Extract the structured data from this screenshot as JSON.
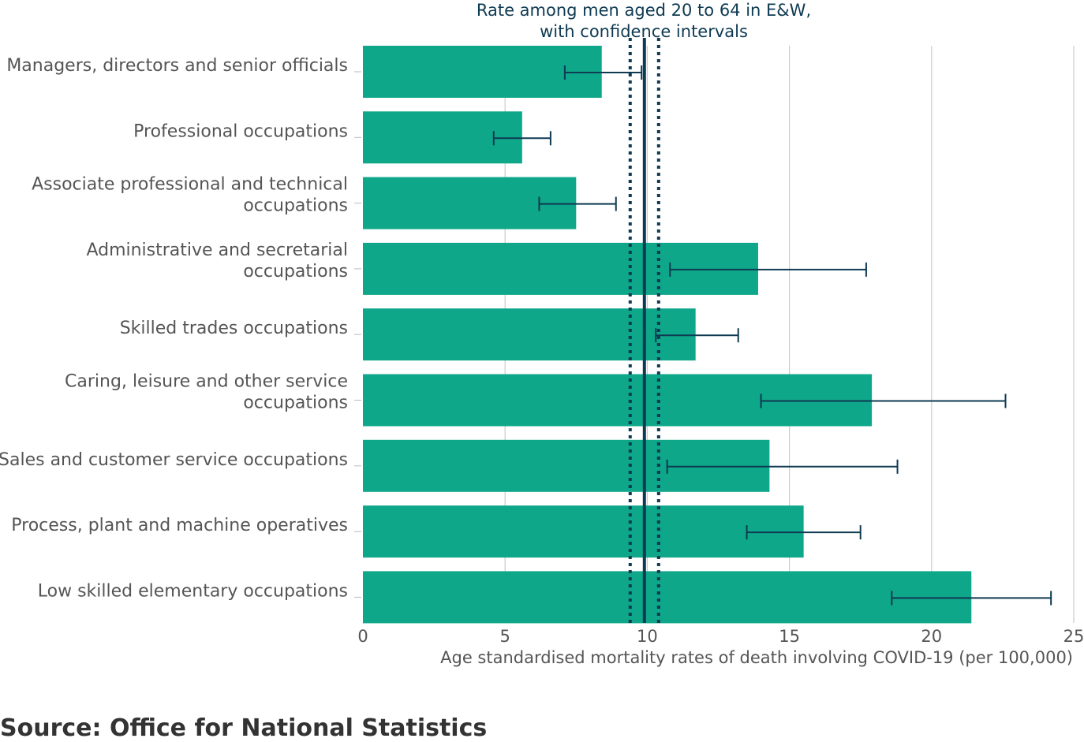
{
  "chart_data": {
    "type": "bar",
    "orientation": "horizontal",
    "categories": [
      [
        "Managers, directors and senior officials"
      ],
      [
        "Professional occupations"
      ],
      [
        "Associate professional and technical",
        "occupations"
      ],
      [
        "Administrative and secretarial",
        "occupations"
      ],
      [
        "Skilled trades occupations"
      ],
      [
        "Caring, leisure and other service",
        "occupations"
      ],
      [
        "Sales and customer service occupations"
      ],
      [
        "Process, plant and machine operatives"
      ],
      [
        "Low skilled elementary occupations"
      ]
    ],
    "values": [
      8.4,
      5.6,
      7.5,
      13.9,
      11.7,
      17.9,
      14.3,
      15.5,
      21.4
    ],
    "error_low": [
      7.1,
      4.6,
      6.2,
      10.8,
      10.3,
      14.0,
      10.7,
      13.5,
      18.6
    ],
    "error_high": [
      9.8,
      6.6,
      8.9,
      17.7,
      13.2,
      22.6,
      18.8,
      17.5,
      24.2
    ],
    "reference": {
      "label_lines": [
        "Rate among men aged 20 to 64 in E&W,",
        "with confidence intervals"
      ],
      "value": 9.9,
      "ci_low": 9.4,
      "ci_high": 10.4
    },
    "xlabel": "Age standardised mortality rates of death involving COVID-19 (per 100,000)",
    "xlim": [
      0,
      25
    ],
    "xticks": [
      0,
      5,
      10,
      15,
      20,
      25
    ],
    "grid": true,
    "bar_color": "#0ea789",
    "line_color": "#0e3a52"
  },
  "source": "Source: Office for National Statistics"
}
